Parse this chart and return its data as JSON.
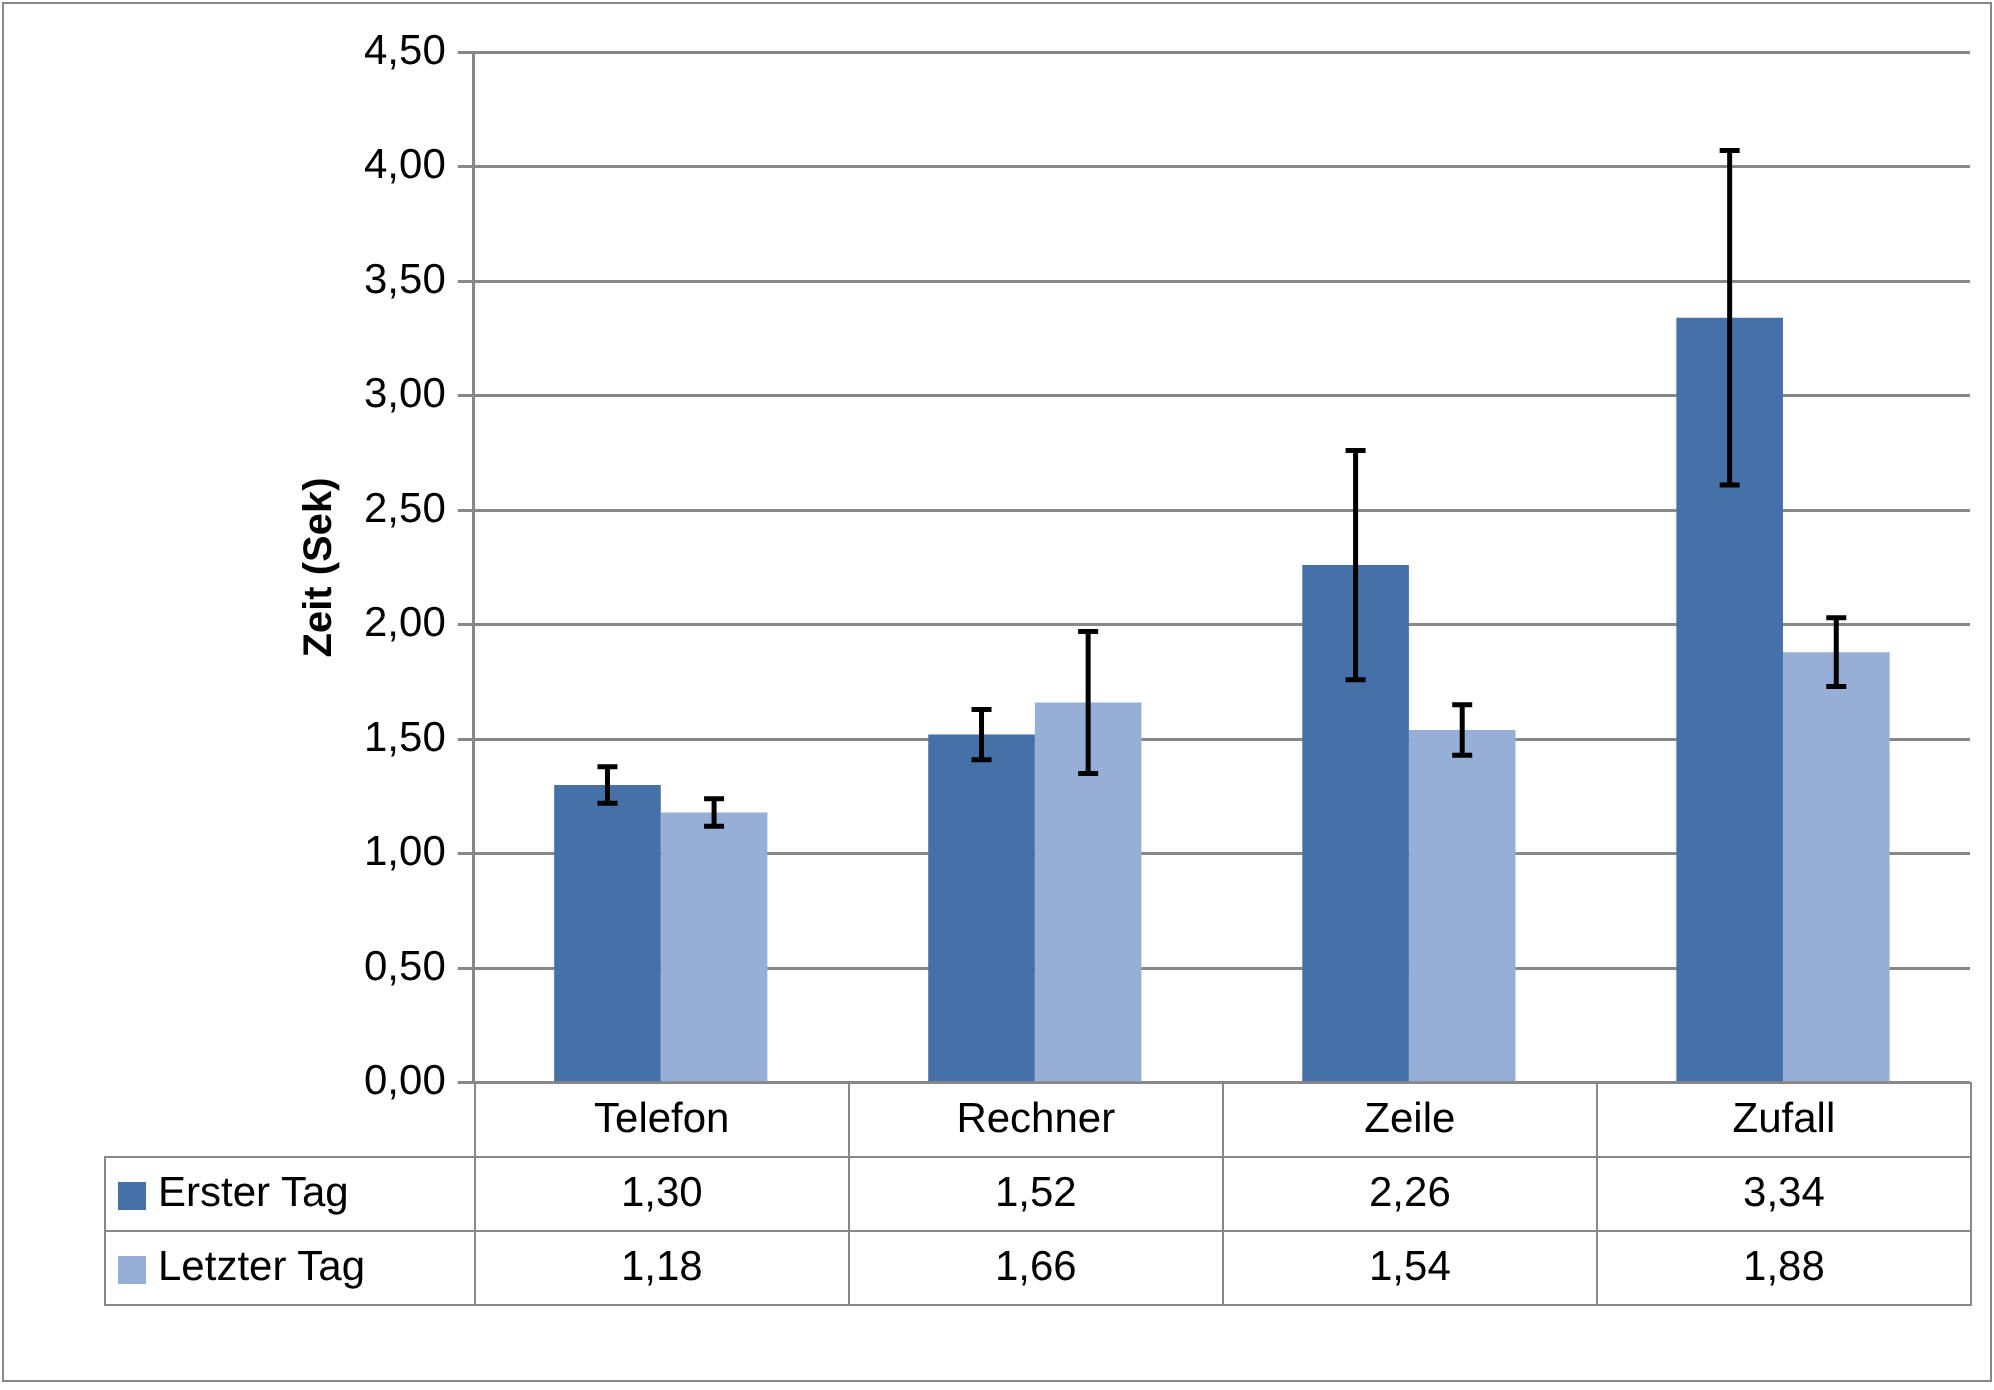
{
  "chart_data": {
    "type": "bar",
    "ylabel": "Zeit (Sek)",
    "categories": [
      "Telefon",
      "Rechner",
      "Zeile",
      "Zufall"
    ],
    "series": [
      {
        "name": "Erster Tag",
        "color": "#4571a8",
        "values": [
          1.3,
          1.52,
          2.26,
          3.34
        ],
        "errors": [
          0.08,
          0.11,
          0.5,
          0.73
        ],
        "value_labels": [
          "1,30",
          "1,52",
          "2,26",
          "3,34"
        ]
      },
      {
        "name": "Letzter Tag",
        "color": "#97afd6",
        "values": [
          1.18,
          1.66,
          1.54,
          1.88
        ],
        "errors": [
          0.06,
          [
            1.35,
            1.97
          ],
          0.11,
          0.15
        ],
        "value_labels": [
          "1,18",
          "1,66",
          "1,54",
          "1,88"
        ]
      }
    ],
    "ylim": [
      0,
      4.5
    ],
    "yticks": [
      {
        "value": 0,
        "label": "0,00"
      },
      {
        "value": 0.5,
        "label": "0,50"
      },
      {
        "value": 1,
        "label": "1,00"
      },
      {
        "value": 1.5,
        "label": "1,50"
      },
      {
        "value": 2,
        "label": "2,00"
      },
      {
        "value": 2.5,
        "label": "2,50"
      },
      {
        "value": 3,
        "label": "3,00"
      },
      {
        "value": 3.5,
        "label": "3,50"
      },
      {
        "value": 4,
        "label": "4,00"
      },
      {
        "value": 4.5,
        "label": "4,50"
      }
    ],
    "grid": "y",
    "legend": "bottom"
  }
}
